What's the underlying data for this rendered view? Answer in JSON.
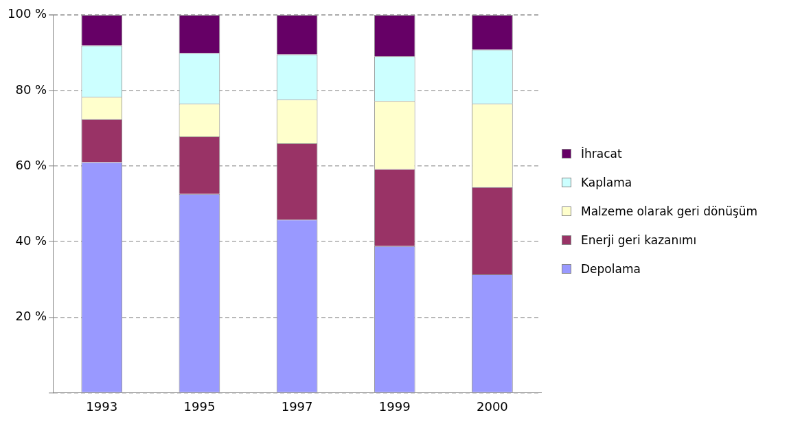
{
  "chart_data": {
    "type": "bar",
    "stacked": true,
    "categories": [
      "1993",
      "1995",
      "1997",
      "1999",
      "2000"
    ],
    "series": [
      {
        "name": "Depolama",
        "color": "#9999ff",
        "values": [
          61.0,
          52.6,
          45.8,
          38.8,
          31.3
        ]
      },
      {
        "name": "Enerji geri kazanımı",
        "color": "#993366",
        "values": [
          11.4,
          15.2,
          20.2,
          20.4,
          23.1
        ]
      },
      {
        "name": "Malzeme olarak geri dönüşüm",
        "color": "#ffffcc",
        "values": [
          5.9,
          8.7,
          11.6,
          18.0,
          22.1
        ]
      },
      {
        "name": "Kaplama",
        "color": "#ccffff",
        "values": [
          13.6,
          13.4,
          11.9,
          11.8,
          14.3
        ]
      },
      {
        "name": "İhracat",
        "color": "#660066",
        "values": [
          8.1,
          10.1,
          10.5,
          11.0,
          9.2
        ]
      }
    ],
    "ylim": [
      0,
      100
    ],
    "yticks": [
      {
        "value": 0,
        "label": null
      },
      {
        "value": 20,
        "label": "20 %"
      },
      {
        "value": 40,
        "label": "40 %"
      },
      {
        "value": 60,
        "label": "60 %"
      },
      {
        "value": 80,
        "label": "80 %"
      },
      {
        "value": 100,
        "label": "100 %"
      }
    ],
    "grid": "y",
    "legend": "right"
  }
}
